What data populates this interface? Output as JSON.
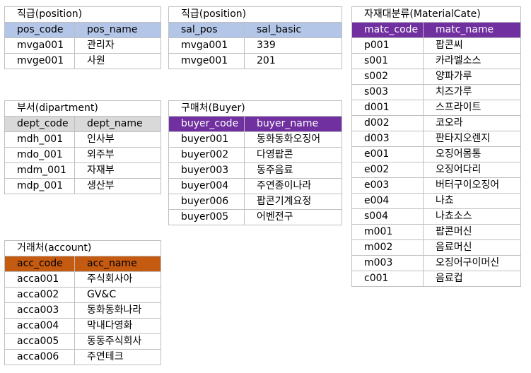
{
  "tables": {
    "position": {
      "title": "직급(position)",
      "headers": [
        "pos_code",
        "pos_name"
      ],
      "rows": [
        [
          "mvga001",
          "관리자"
        ],
        [
          "mvge001",
          "사원"
        ]
      ],
      "header_color": "#b4c6e7"
    },
    "salary": {
      "title": "직급(position)",
      "headers": [
        "sal_pos",
        "sal_basic"
      ],
      "rows": [
        [
          "mvga001",
          "339"
        ],
        [
          "mvge001",
          "201"
        ]
      ],
      "header_color": "#b4c6e7"
    },
    "material": {
      "title": "자재대분류(MaterialCate)",
      "headers": [
        "matc_code",
        "matc_name"
      ],
      "rows": [
        [
          "p001",
          "팝콘씨"
        ],
        [
          "s001",
          "카라멜소스"
        ],
        [
          "s002",
          "양파가루"
        ],
        [
          "s003",
          "치즈가루"
        ],
        [
          "d001",
          "스프라이트"
        ],
        [
          "d002",
          "코오라"
        ],
        [
          "d003",
          "판타지오렌지"
        ],
        [
          "e001",
          "오징어몸통"
        ],
        [
          "e002",
          "오징어다리"
        ],
        [
          "e003",
          "버터구이오징어"
        ],
        [
          "e004",
          "나쵸"
        ],
        [
          "s004",
          "나쵸소스"
        ],
        [
          "m001",
          "팝콘머신"
        ],
        [
          "m002",
          "음료머신"
        ],
        [
          "m003",
          "오징어구이머신"
        ],
        [
          "c001",
          "음료컵"
        ]
      ],
      "header_color": "#7030a0"
    },
    "department": {
      "title": "부서(dipartment)",
      "headers": [
        "dept_code",
        "dept_name"
      ],
      "rows": [
        [
          "mdh_001",
          "인사부"
        ],
        [
          "mdo_001",
          "외주부"
        ],
        [
          "mdm_001",
          "자재부"
        ],
        [
          "mdp_001",
          "생산부"
        ]
      ],
      "header_color": "#d9d9d9"
    },
    "buyer": {
      "title": "구매처(Buyer)",
      "headers": [
        "buyer_code",
        "buyer_name"
      ],
      "rows": [
        [
          "buyer001",
          "동화동화오징어"
        ],
        [
          "buyer002",
          "다영팝콘"
        ],
        [
          "buyer003",
          "동주음료"
        ],
        [
          "buyer004",
          "주연종이나라"
        ],
        [
          "buyer006",
          "팝콘기계요정"
        ],
        [
          "buyer005",
          "어벤전구"
        ]
      ],
      "header_color": "#7030a0"
    },
    "account": {
      "title": "거래처(account)",
      "headers": [
        "acc_code",
        "acc_name"
      ],
      "rows": [
        [
          "acca001",
          "주식회사아"
        ],
        [
          "acca002",
          "GV&C"
        ],
        [
          "acca003",
          "동화동화나라"
        ],
        [
          "acca004",
          "막내다영화"
        ],
        [
          "acca005",
          "동동주식회사"
        ],
        [
          "acca006",
          "주연테크"
        ]
      ],
      "header_color": "#c55a11"
    }
  }
}
